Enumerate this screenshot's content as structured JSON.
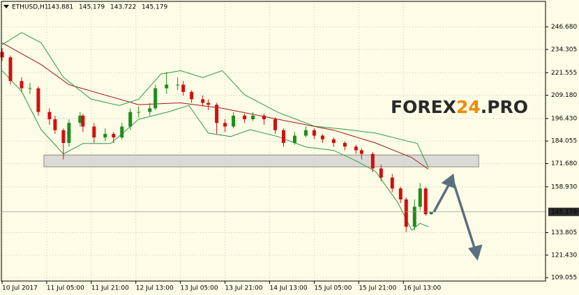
{
  "chart_data": {
    "type": "candlestick",
    "symbol": "ETHUSD,H1",
    "ohlc": [
      143.881,
      145.179,
      143.722,
      145.179
    ],
    "watermark": [
      "FOREX",
      "24",
      ".PRO"
    ],
    "last_price": 145.179,
    "xlim": [
      0,
      195
    ],
    "xticks": [
      {
        "value": 0,
        "label": "10 Jul 2017"
      },
      {
        "value": 16,
        "label": "11 Jul 05:00"
      },
      {
        "value": 32,
        "label": "11 Jul 21:00"
      },
      {
        "value": 48,
        "label": "12 Jul 13:00"
      },
      {
        "value": 64,
        "label": "13 Jul 05:00"
      },
      {
        "value": 80,
        "label": "13 Jul 21:00"
      },
      {
        "value": 96,
        "label": "14 Jul 13:00"
      },
      {
        "value": 112,
        "label": "15 Jul 05:00"
      },
      {
        "value": 128,
        "label": "15 Jul 21:00"
      },
      {
        "value": 144,
        "label": "16 Jul 13:00"
      }
    ],
    "ylim": [
      107.2,
      260.7
    ],
    "yticks": [
      109.055,
      {
        "value": 121.43,
        "label": "121.430"
      },
      133.805,
      {
        "value": 158.93,
        "label": "158.930"
      },
      {
        "value": 171.68,
        "label": "171.680"
      },
      184.055,
      {
        "value": 196.43,
        "label": "196.430"
      },
      {
        "value": 209.18,
        "label": "209.180"
      },
      221.555,
      234.305,
      {
        "value": 246.68,
        "label": "246.680"
      }
    ],
    "grid": true,
    "up_color": "#1e8c1e",
    "down_color": "#d01010",
    "candles": {
      "x": [
        0,
        3,
        7,
        10,
        13,
        17,
        19,
        22,
        24,
        28,
        29,
        33,
        37,
        40,
        43,
        46,
        49,
        53,
        55,
        59,
        63,
        65,
        68,
        72,
        74,
        77,
        80,
        83,
        87,
        90,
        94,
        98,
        101,
        105,
        109,
        112,
        115,
        119,
        123,
        127,
        129,
        133,
        136,
        140,
        143,
        145,
        148,
        150,
        152,
        154
      ],
      "open": [
        233,
        230,
        217,
        213,
        213,
        200,
        196,
        190,
        183,
        194,
        198,
        192,
        186,
        188,
        186,
        192,
        200,
        200,
        202,
        213,
        215,
        215,
        211,
        207,
        205,
        204,
        194,
        192,
        198,
        196,
        198,
        196,
        190,
        183,
        187,
        190,
        187,
        185,
        183,
        181,
        179,
        177,
        169,
        164,
        158,
        152,
        137,
        148,
        158,
        143.9
      ],
      "high": [
        235,
        231,
        219,
        216,
        214,
        202,
        198,
        191,
        196,
        200,
        199,
        194,
        191,
        189,
        194,
        202,
        203,
        205,
        215,
        222,
        219,
        217,
        212,
        209,
        207,
        205,
        196,
        200,
        199,
        200,
        199,
        197,
        191,
        189,
        192,
        191,
        188,
        186,
        184,
        182,
        180,
        178,
        171,
        166,
        159,
        153,
        152,
        161,
        159,
        145.179
      ],
      "low": [
        228,
        215,
        211,
        210,
        198,
        193,
        188,
        174,
        181,
        192,
        189,
        183,
        184,
        183,
        185,
        190,
        197,
        198,
        201,
        210,
        212,
        209,
        205,
        203,
        201,
        188,
        189,
        191,
        194,
        195,
        193,
        188,
        181,
        182,
        186,
        185,
        183,
        181,
        179,
        177,
        174,
        167,
        162,
        156,
        150,
        134,
        135,
        146,
        143,
        143.722
      ],
      "close": [
        230,
        217,
        213,
        213,
        200,
        196,
        190,
        183,
        194,
        198,
        192,
        186,
        188,
        186,
        192,
        200,
        200,
        202,
        213,
        215,
        215,
        211,
        207,
        205,
        204,
        194,
        192,
        198,
        196,
        198,
        196,
        190,
        183,
        187,
        190,
        187,
        185,
        183,
        181,
        179,
        177,
        169,
        164,
        158,
        152,
        137,
        148,
        158,
        143.9,
        145.179
      ]
    },
    "zone": {
      "xlim": [
        15,
        171
      ],
      "ylim": [
        169.9,
        176.4
      ],
      "color": "#cfcfcf"
    },
    "series": [
      {
        "color": "#a01818",
        "x": [
          0,
          14,
          24,
          49,
          64,
          79,
          99,
          119,
          134,
          147,
          153
        ],
        "values": [
          238,
          226,
          215,
          204,
          205,
          202,
          196,
          190,
          183,
          175,
          168.6
        ]
      },
      {
        "color": "#2e9a4a",
        "x": [
          0,
          7,
          14,
          22,
          32,
          42,
          49,
          57,
          64,
          72,
          79,
          87,
          99,
          112,
          124,
          134,
          144,
          149,
          153
        ],
        "values": [
          237,
          243.6,
          238,
          219,
          207,
          203.6,
          207,
          220.8,
          222.7,
          218.9,
          222.7,
          209.4,
          199.8,
          192.2,
          190.3,
          188.4,
          184.6,
          182.7,
          169.4
        ]
      },
      {
        "color": "#2e9a4a",
        "x": [
          0,
          7,
          14,
          22,
          29,
          39,
          49,
          59,
          67,
          74,
          82,
          89,
          99,
          109,
          119,
          127,
          134,
          142,
          147,
          150,
          153
        ],
        "values": [
          222.7,
          211.3,
          190.3,
          177,
          182.7,
          182.7,
          196,
          199.8,
          203.6,
          188.4,
          186.5,
          190.3,
          186.5,
          180.8,
          178.9,
          173.2,
          167.4,
          150.3,
          135.1,
          138.9,
          137
        ]
      }
    ]
  }
}
